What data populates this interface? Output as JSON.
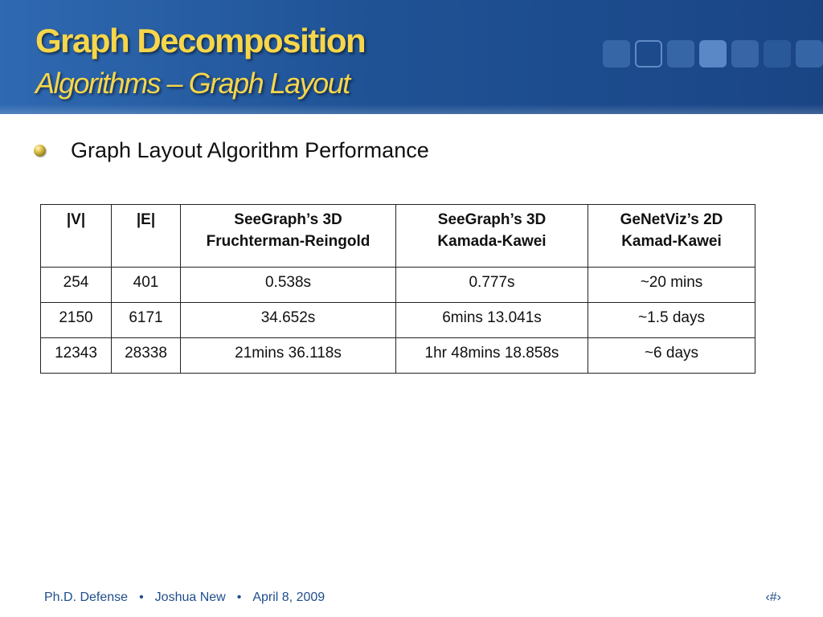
{
  "slide": {
    "title": "Graph Decomposition",
    "subtitle": "Algorithms – Graph Layout",
    "bullet": "Graph Layout Algorithm Performance"
  },
  "table": {
    "headers": [
      {
        "line1": "|V|",
        "line2": ""
      },
      {
        "line1": "|E|",
        "line2": ""
      },
      {
        "line1": "SeeGraph’s 3D",
        "line2": "Fruchterman-Reingold"
      },
      {
        "line1": "SeeGraph’s 3D",
        "line2": "Kamada-Kawei"
      },
      {
        "line1": "GeNetViz’s 2D",
        "line2": "Kamad-Kawei"
      }
    ],
    "rows": [
      [
        "254",
        "401",
        "0.538s",
        "0.777s",
        "~20 mins"
      ],
      [
        "2150",
        "6171",
        "34.652s",
        "6mins 13.041s",
        "~1.5 days"
      ],
      [
        "12343",
        "28338",
        "21mins 36.118s",
        "1hr 48mins 18.858s",
        "~6 days"
      ]
    ]
  },
  "footer": {
    "event": "Ph.D. Defense",
    "separator": "•",
    "presenter": "Joshua New",
    "date": "April 8, 2009",
    "slide_number": "‹#›"
  },
  "colors": {
    "header_blue": "#1f5295",
    "title_gold": "#f7d64a",
    "footer_blue": "#1f4e8c"
  }
}
